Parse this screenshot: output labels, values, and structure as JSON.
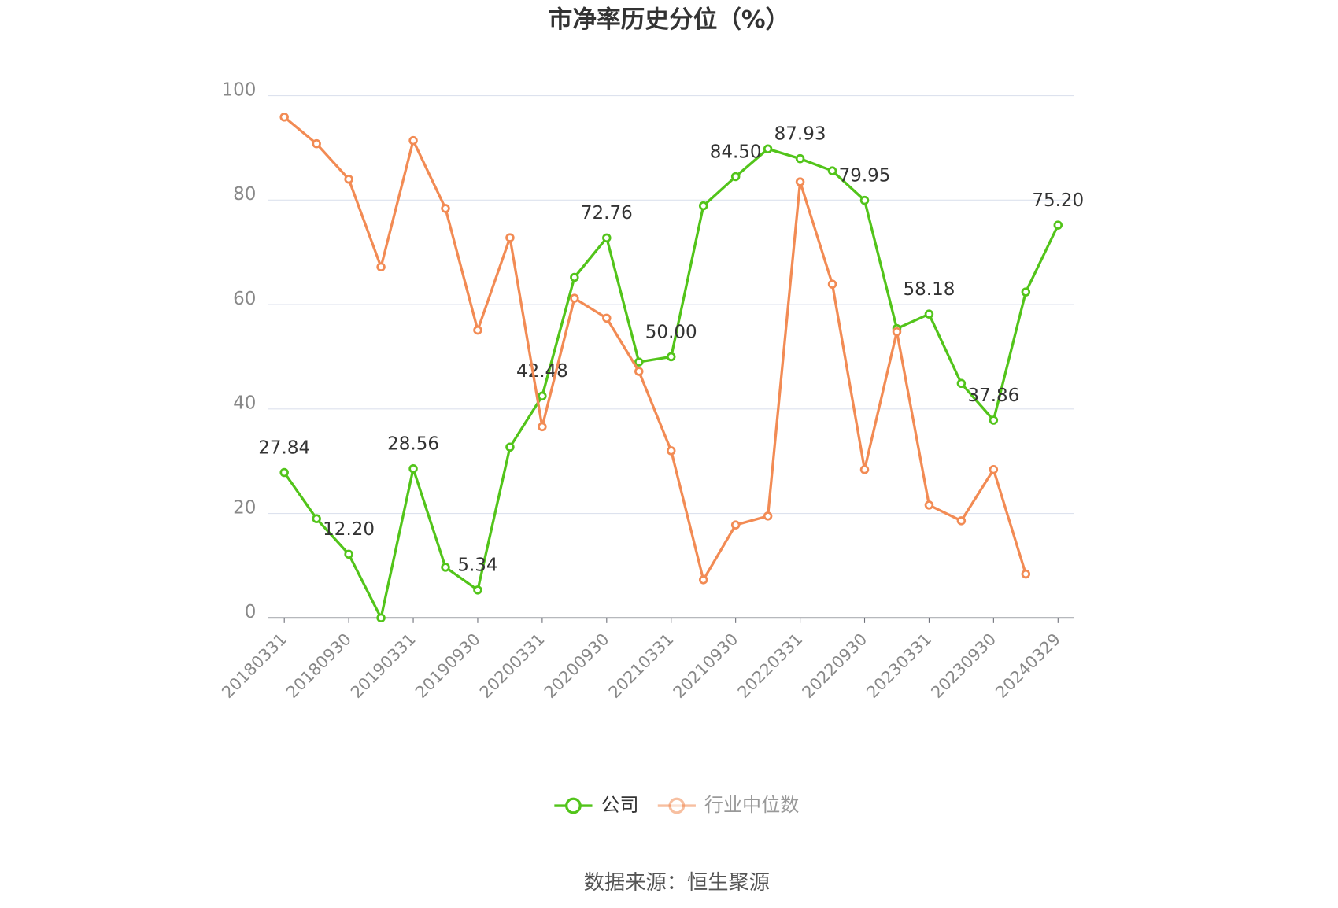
{
  "chart_data": {
    "type": "line",
    "title": "市净率历史分位（%）",
    "categories": [
      "20180331",
      null,
      "20180930",
      null,
      "20190331",
      null,
      "20190930",
      null,
      "20200331",
      null,
      "20200930",
      null,
      "20210331",
      null,
      "20210930",
      null,
      "20220331",
      null,
      "20220930",
      null,
      "20230331",
      null,
      "20230930",
      null,
      "20240329"
    ],
    "series": [
      {
        "name": "公司",
        "color": "#52c41a",
        "values": [
          27.84,
          19.0,
          12.2,
          0,
          28.56,
          9.7,
          5.34,
          32.7,
          42.48,
          65.2,
          72.76,
          49.0,
          50.0,
          78.9,
          84.5,
          89.8,
          87.93,
          85.6,
          79.95,
          55.4,
          58.18,
          44.9,
          37.86,
          62.4,
          75.2
        ],
        "value_labels": [
          "27.84",
          null,
          "12.20",
          null,
          "28.56",
          null,
          "5.34",
          null,
          "42.48",
          null,
          "72.76",
          null,
          "50.00",
          null,
          "84.50",
          null,
          "87.93",
          null,
          "79.95",
          null,
          "58.18",
          null,
          "37.86",
          null,
          "75.20"
        ]
      },
      {
        "name": "行业中位数",
        "color": "#f28b54",
        "values": [
          95.9,
          90.8,
          84.0,
          67.2,
          91.4,
          78.4,
          55.1,
          72.8,
          36.6,
          61.2,
          57.4,
          47.2,
          32.0,
          7.3,
          17.8,
          19.5,
          83.5,
          63.9,
          28.4,
          54.8,
          21.6,
          18.6,
          28.4,
          8.4,
          null
        ]
      }
    ],
    "ylim": [
      0,
      100
    ],
    "yticks": [
      0,
      20,
      40,
      60,
      80,
      100
    ],
    "grid": true,
    "source": "数据来源：恒生聚源"
  }
}
